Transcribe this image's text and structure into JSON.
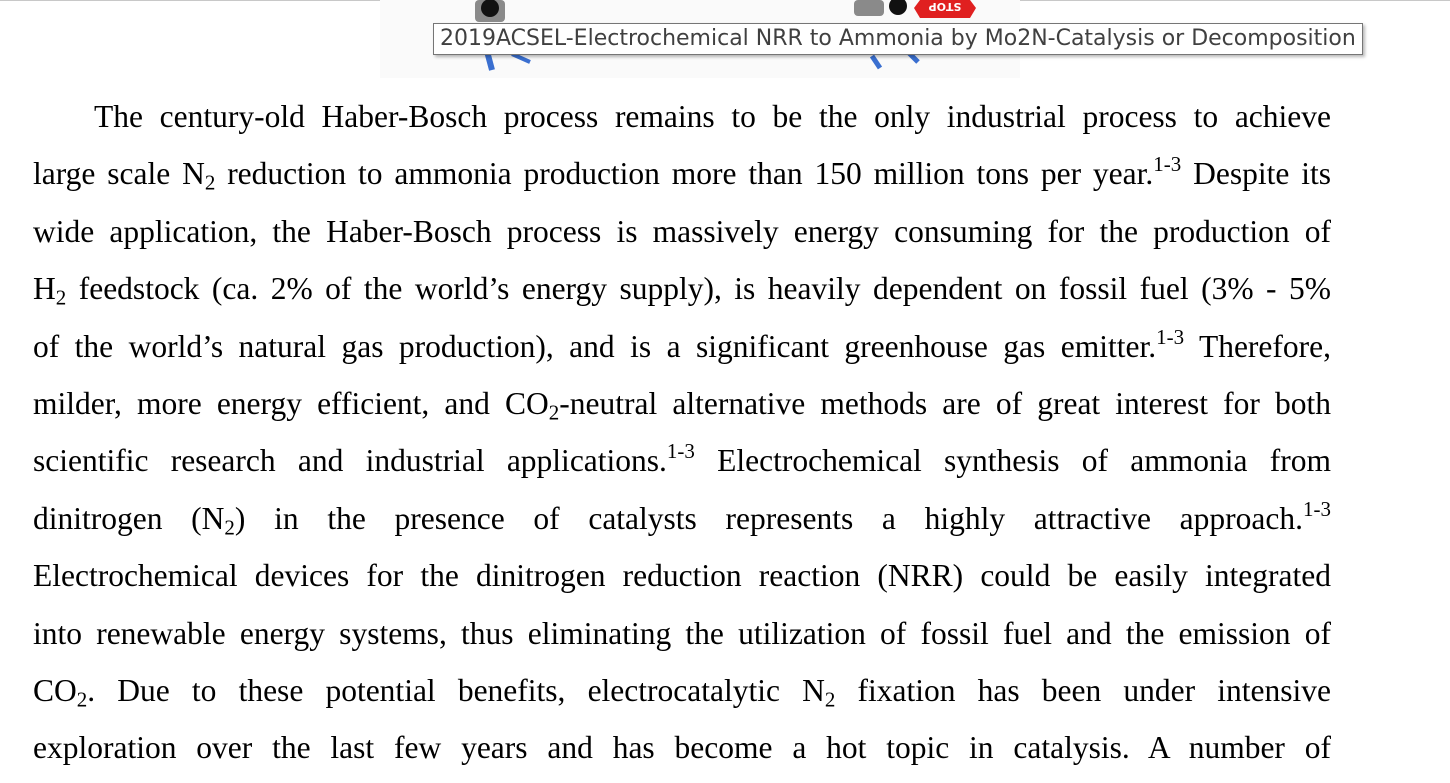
{
  "tooltip": {
    "text": "2019ACSEL-Electrochemical NRR to Ammonia by Mo2N-Catalysis or Decomposition"
  },
  "figure": {
    "stop_label": "STOP",
    "icons": [
      "traffic-light-icon",
      "stop-sign-icon"
    ],
    "colors": {
      "blue": "#3a6fd0",
      "red": "#e02020",
      "black": "#111111",
      "grey": "#8a8a8a"
    }
  },
  "paragraph": {
    "l1": {
      "a": "The century-old Haber-Bosch process remains to be the only industrial process to achieve"
    },
    "l2": {
      "a": "large scale N",
      "sub1": "2",
      "b": " reduction to ammonia production more than 150 million tons per year.",
      "sup1": "1-3",
      "c": " Despite its"
    },
    "l3": {
      "a": "wide application, the Haber-Bosch process is massively energy consuming for the production of"
    },
    "l4": {
      "a": "H",
      "sub1": "2",
      "b": " feedstock (ca. 2% of the world’s energy supply), is heavily dependent on fossil fuel (3% - 5%"
    },
    "l5": {
      "a": "of the world’s natural gas production), and is a significant greenhouse gas emitter.",
      "sup1": "1-3",
      "b": " Therefore,"
    },
    "l6": {
      "a": "milder, more energy efficient, and CO",
      "sub1": "2",
      "b": "-neutral alternative methods are of great interest for both"
    },
    "l7": {
      "a": "scientific research and industrial applications.",
      "sup1": "1-3",
      "b": " Electrochemical synthesis of ammonia from"
    },
    "l8": {
      "a": "dinitrogen (N",
      "sub1": "2",
      "b": ") in the presence of catalysts represents a highly attractive approach.",
      "sup1": "1-3"
    },
    "l9": {
      "a": "Electrochemical devices for the dinitrogen reduction reaction (NRR) could be easily integrated"
    },
    "l10": {
      "a": "into renewable energy systems, thus eliminating the utilization of fossil fuel and the emission of"
    },
    "l11": {
      "a": "CO",
      "sub1": "2",
      "b": ". Due to these potential benefits, electrocatalytic N",
      "sub2": "2",
      "c": " fixation has been under intensive"
    },
    "l12": {
      "a": "exploration over the last few years and has become a hot topic in catalysis. A number of"
    }
  }
}
